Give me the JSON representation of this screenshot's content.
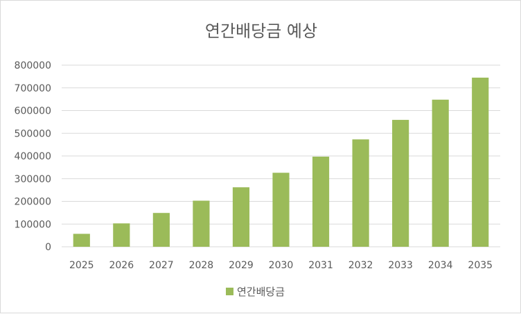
{
  "chart_data": {
    "type": "bar",
    "title": "연간배당금 예상",
    "categories": [
      "2025",
      "2026",
      "2027",
      "2028",
      "2029",
      "2030",
      "2031",
      "2032",
      "2033",
      "2034",
      "2035"
    ],
    "series": [
      {
        "name": "연간배당금",
        "color": "#9bbb59",
        "values": [
          57000,
          103000,
          149000,
          203000,
          262000,
          326000,
          397000,
          473000,
          559000,
          648000,
          745000
        ]
      }
    ],
    "ylim": [
      0,
      800000
    ],
    "yticks": [
      "0",
      "100000",
      "200000",
      "300000",
      "400000",
      "500000",
      "600000",
      "700000",
      "800000"
    ],
    "xlabel": "",
    "ylabel": "",
    "grid": true,
    "legend_position": "bottom"
  }
}
